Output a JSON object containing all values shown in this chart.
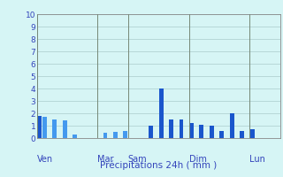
{
  "xlabel": "Précipitations 24h ( mm )",
  "background_color": "#d6f5f5",
  "bar_color_dark": "#1a56cc",
  "bar_color_light": "#4499ee",
  "grid_color": "#aacccc",
  "ylim": [
    0,
    10
  ],
  "yticks": [
    0,
    1,
    2,
    3,
    4,
    5,
    6,
    7,
    8,
    9,
    10
  ],
  "day_labels": [
    "Ven",
    "Mar",
    "Sam",
    "Dim",
    "Lun"
  ],
  "day_positions": [
    0,
    12,
    18,
    30,
    42
  ],
  "n_bars": 48,
  "bar_values": [
    1.8,
    1.7,
    0,
    1.5,
    0,
    1.4,
    0,
    0.3,
    0,
    0,
    0,
    0,
    0,
    0.4,
    0,
    0.5,
    0,
    0.55,
    0,
    0,
    0,
    0,
    1.0,
    0,
    4.0,
    0,
    1.5,
    0,
    1.5,
    0,
    1.2,
    0,
    1.1,
    0,
    1.0,
    0,
    0.6,
    0,
    2.0,
    0,
    0.6,
    0,
    0.7,
    0,
    0,
    0,
    0,
    0
  ]
}
